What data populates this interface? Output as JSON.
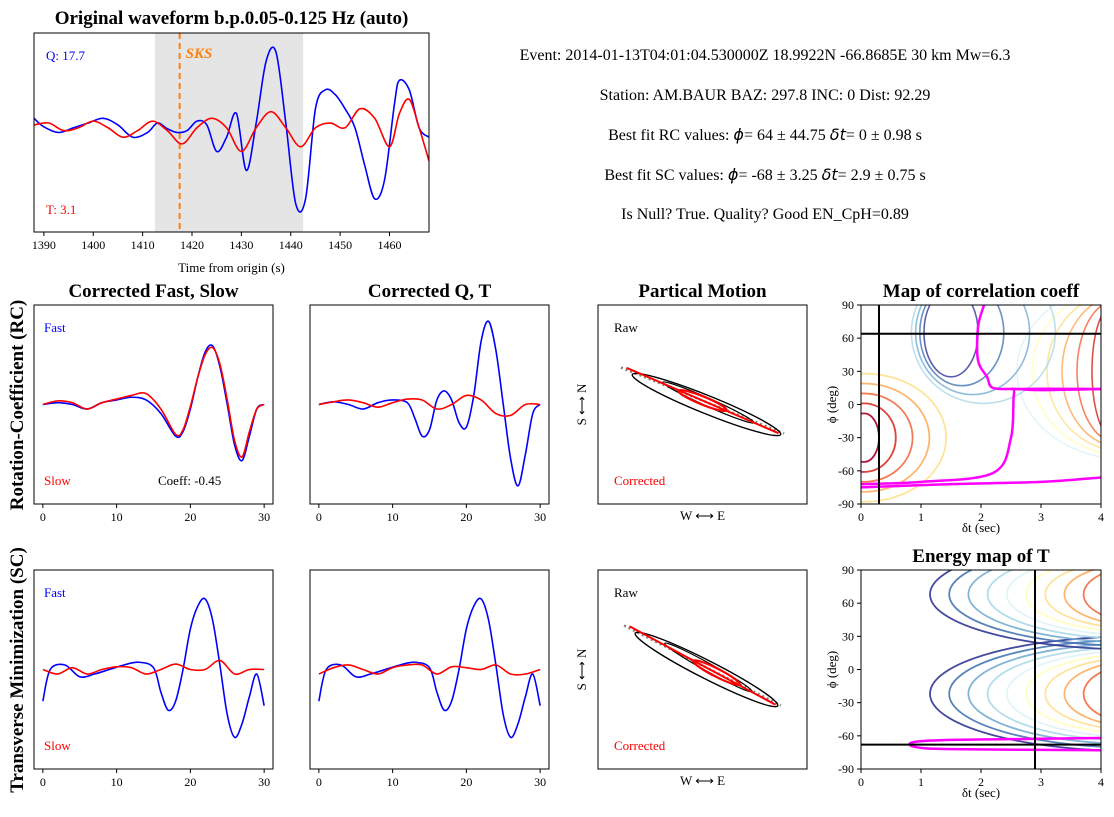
{
  "info": {
    "event_line": "Event: 2014-01-13T04:01:04.530000Z   18.9922N -66.8685E 30 km  Mw=6.3",
    "station_line": "Station: AM.BAUR  BAZ: 297.8  INC: 0 Dist: 92.29",
    "rc_prefix": "Best fit RC values: ",
    "rc_phi_symbol": "ϕ",
    "rc_phi_text": "= 64 ± 44.75    ",
    "rc_dt_symbol": "δt",
    "rc_dt_text": "= 0 ± 0.98 s",
    "sc_prefix": "Best fit SC values: ",
    "sc_phi_symbol": "ϕ",
    "sc_phi_text": "= -68 ± 3.25    ",
    "sc_dt_symbol": "δt",
    "sc_dt_text": "= 2.9 ± 0.75 s",
    "null_line": "Is Null? True. Quality? Good   EN_CpH=0.89"
  },
  "colors": {
    "fast": "#0000ff",
    "slow": "#ff0000",
    "pick": "#ff7f0e",
    "window": "#e5e5e5",
    "null_contour": "#ff00ff",
    "fit_line": "#808080"
  },
  "row_labels": {
    "rc": "Rotation-Coefficient (RC)",
    "sc": "Transverse Minimization (SC)"
  },
  "chart_data": [
    {
      "id": "waveform",
      "type": "line",
      "title": "Original waveform b.p.0.05-0.125 Hz (auto)",
      "xlabel": "Time from origin (s)",
      "ylabel": "",
      "xlim": [
        1388,
        1468
      ],
      "ylim": [
        -1.05,
        1.05
      ],
      "xticks": [
        1390,
        1400,
        1410,
        1420,
        1430,
        1440,
        1450,
        1460
      ],
      "window": [
        1412.5,
        1442.5
      ],
      "pick": {
        "x": 1417.5,
        "label": "SKS"
      },
      "labels": {
        "q": "Q: 17.7",
        "t": "T: 3.1"
      },
      "series": [
        {
          "key": "Q",
          "color": "#0000ff",
          "x": [
            1388,
            1390,
            1393,
            1396,
            1399,
            1402,
            1405,
            1408,
            1411,
            1413,
            1415,
            1417,
            1419,
            1421,
            1423,
            1425,
            1427,
            1429,
            1431,
            1433,
            1435,
            1437,
            1439,
            1441,
            1443,
            1445,
            1447,
            1449,
            1451,
            1453,
            1455,
            1457,
            1459,
            1461,
            1462,
            1464,
            1466,
            1468
          ],
          "y": [
            0.15,
            0.06,
            0.0,
            0.05,
            0.1,
            0.15,
            0.08,
            -0.05,
            0.0,
            0.1,
            0.04,
            0.0,
            0.02,
            0.12,
            0.08,
            -0.2,
            -0.05,
            0.2,
            -0.4,
            0.1,
            0.75,
            0.85,
            0.1,
            -0.75,
            -0.7,
            0.25,
            0.45,
            0.4,
            0.25,
            0.05,
            -0.35,
            -0.7,
            -0.5,
            0.3,
            0.55,
            0.45,
            0.05,
            -0.05
          ]
        },
        {
          "key": "T",
          "color": "#ff0000",
          "x": [
            1388,
            1391,
            1394,
            1397,
            1400,
            1403,
            1406,
            1409,
            1412,
            1415,
            1418,
            1421,
            1424,
            1427,
            1430,
            1433,
            1436,
            1439,
            1442,
            1445,
            1448,
            1451,
            1454,
            1457,
            1460,
            1462,
            1464,
            1466,
            1468
          ],
          "y": [
            0.08,
            0.1,
            0.02,
            0.05,
            0.12,
            0.05,
            -0.05,
            0.02,
            0.12,
            0.02,
            -0.12,
            0.05,
            0.15,
            0.05,
            -0.2,
            0.05,
            0.22,
            0.05,
            -0.15,
            0.05,
            0.1,
            0.05,
            0.25,
            0.15,
            -0.15,
            0.2,
            0.35,
            0.05,
            -0.3
          ]
        }
      ]
    },
    {
      "id": "rc_fast_slow",
      "type": "line",
      "title": "Corrected Fast, Slow",
      "xlim": [
        -1.2,
        31.2
      ],
      "ylim": [
        -1.1,
        1.1
      ],
      "xticks": [
        0,
        10,
        20,
        30
      ],
      "labels": {
        "fast": "Fast",
        "slow": "Slow",
        "coeff": "Coeff: -0.45"
      },
      "series": [
        {
          "key": "fast",
          "color": "#0000ff",
          "x": [
            0,
            2,
            4,
            6,
            8,
            10,
            12,
            14,
            16,
            18,
            19,
            20,
            21,
            22,
            23,
            24,
            25,
            26,
            27,
            28,
            29,
            30
          ],
          "y": [
            0,
            0.02,
            0.0,
            -0.05,
            0.02,
            0.05,
            0.08,
            0.05,
            -0.1,
            -0.35,
            -0.3,
            -0.05,
            0.3,
            0.58,
            0.65,
            0.42,
            0.0,
            -0.45,
            -0.62,
            -0.35,
            -0.05,
            0.0
          ]
        },
        {
          "key": "slow",
          "color": "#ff0000",
          "x": [
            0,
            2,
            4,
            6,
            8,
            10,
            12,
            14,
            16,
            18,
            19,
            20,
            21,
            22,
            23,
            24,
            25,
            26,
            27,
            28,
            29,
            30
          ],
          "y": [
            0,
            0.04,
            0.02,
            -0.05,
            0.02,
            0.06,
            0.1,
            0.12,
            -0.05,
            -0.33,
            -0.28,
            -0.02,
            0.3,
            0.55,
            0.63,
            0.45,
            0.05,
            -0.4,
            -0.58,
            -0.3,
            -0.05,
            0.0
          ]
        }
      ]
    },
    {
      "id": "rc_q_t",
      "type": "line",
      "title": "Corrected Q, T",
      "xlim": [
        -1.2,
        31.2
      ],
      "ylim": [
        -1.1,
        1.1
      ],
      "xticks": [
        0,
        10,
        20,
        30
      ],
      "series": [
        {
          "key": "Q",
          "color": "#0000ff",
          "x": [
            0,
            2,
            4,
            6,
            8,
            10,
            12,
            13,
            14,
            15,
            16,
            17,
            18,
            19,
            20,
            21,
            22,
            23,
            24,
            25,
            26,
            27,
            28,
            29,
            30
          ],
          "y": [
            0,
            0.03,
            0.0,
            -0.05,
            0.02,
            0.05,
            0.02,
            -0.15,
            -0.35,
            -0.28,
            0.05,
            0.15,
            0.05,
            -0.2,
            -0.25,
            0.1,
            0.7,
            0.92,
            0.6,
            0.0,
            -0.6,
            -0.9,
            -0.55,
            -0.1,
            0.0
          ]
        },
        {
          "key": "T",
          "color": "#ff0000",
          "x": [
            0,
            2,
            4,
            6,
            8,
            10,
            12,
            14,
            16,
            18,
            20,
            22,
            24,
            26,
            28,
            30
          ],
          "y": [
            0,
            0.03,
            0.05,
            0.02,
            -0.03,
            0.02,
            0.06,
            0.05,
            -0.05,
            0.0,
            0.1,
            0.05,
            -0.1,
            -0.12,
            0.0,
            0.0
          ]
        }
      ]
    },
    {
      "id": "rc_particle",
      "type": "scatter",
      "title": "Partical Motion",
      "xlabel": "W ⟷ E",
      "ylabel": "S ⟷ N",
      "labels": {
        "raw": "Raw",
        "corrected": "Corrected"
      }
    },
    {
      "id": "rc_map",
      "type": "heatmap",
      "title": "Map of correlation coeff",
      "xlabel": "δt (sec)",
      "ylabel": "ϕ (deg)",
      "xlim": [
        0,
        4
      ],
      "ylim": [
        -90,
        90
      ],
      "xticks": [
        0,
        1,
        2,
        3,
        4
      ],
      "yticks": [
        -90,
        -60,
        -30,
        0,
        30,
        60,
        90
      ],
      "best": {
        "dt": 0.3,
        "phi": 64
      }
    },
    {
      "id": "sc_fast_slow",
      "type": "line",
      "xlim": [
        -1.2,
        31.2
      ],
      "ylim": [
        -1.1,
        1.1
      ],
      "xticks": [
        0,
        10,
        20,
        30
      ],
      "labels": {
        "fast": "Fast",
        "slow": "Slow"
      },
      "series": [
        {
          "key": "fast",
          "color": "#0000ff",
          "x": [
            0,
            1,
            3,
            5,
            7,
            9,
            11,
            13,
            15,
            16,
            17,
            18,
            19,
            20,
            21,
            22,
            23,
            24,
            25,
            26,
            27,
            28,
            29,
            30
          ],
          "y": [
            -0.35,
            0.0,
            0.05,
            -0.08,
            -0.05,
            0.0,
            0.05,
            0.08,
            0.02,
            -0.25,
            -0.45,
            -0.35,
            0.0,
            0.45,
            0.7,
            0.78,
            0.55,
            0.05,
            -0.5,
            -0.75,
            -0.6,
            -0.3,
            -0.05,
            -0.4
          ]
        },
        {
          "key": "slow",
          "color": "#ff0000",
          "x": [
            0,
            2,
            4,
            6,
            8,
            10,
            12,
            14,
            16,
            18,
            20,
            22,
            24,
            26,
            28,
            30
          ],
          "y": [
            0.0,
            -0.05,
            0.02,
            -0.05,
            0.0,
            0.03,
            0.02,
            -0.05,
            0.0,
            0.06,
            0.0,
            0.0,
            0.1,
            -0.05,
            0.0,
            0.0
          ]
        }
      ]
    },
    {
      "id": "sc_q_t",
      "type": "line",
      "xlim": [
        -1.2,
        31.2
      ],
      "ylim": [
        -1.1,
        1.1
      ],
      "xticks": [
        0,
        10,
        20,
        30
      ],
      "series": [
        {
          "key": "Q",
          "color": "#0000ff",
          "x": [
            0,
            1,
            3,
            5,
            7,
            9,
            11,
            13,
            15,
            16,
            17,
            18,
            19,
            20,
            21,
            22,
            23,
            24,
            25,
            26,
            27,
            28,
            29,
            30
          ],
          "y": [
            -0.35,
            0.0,
            0.05,
            -0.08,
            -0.05,
            0.0,
            0.05,
            0.08,
            0.02,
            -0.25,
            -0.45,
            -0.35,
            0.0,
            0.45,
            0.7,
            0.78,
            0.55,
            0.05,
            -0.5,
            -0.75,
            -0.6,
            -0.3,
            -0.05,
            -0.4
          ]
        },
        {
          "key": "T",
          "color": "#ff0000",
          "x": [
            0,
            2,
            4,
            6,
            8,
            10,
            12,
            14,
            16,
            18,
            20,
            22,
            24,
            26,
            28,
            30
          ],
          "y": [
            -0.05,
            0.02,
            0.05,
            0.0,
            -0.05,
            0.02,
            0.05,
            0.05,
            -0.05,
            0.03,
            0.02,
            0.0,
            0.05,
            -0.05,
            -0.05,
            0.0
          ]
        }
      ]
    },
    {
      "id": "sc_particle",
      "type": "scatter",
      "xlabel": "W ⟷ E",
      "ylabel": "S ⟷ N",
      "labels": {
        "raw": "Raw",
        "corrected": "Corrected"
      }
    },
    {
      "id": "sc_map",
      "type": "heatmap",
      "title": "Energy map of T",
      "xlabel": "δt (sec)",
      "ylabel": "ϕ (deg)",
      "xlim": [
        0,
        4
      ],
      "ylim": [
        -90,
        90
      ],
      "xticks": [
        0,
        1,
        2,
        3,
        4
      ],
      "yticks": [
        -90,
        -60,
        -30,
        0,
        30,
        60,
        90
      ],
      "best": {
        "dt": 2.9,
        "phi": -68
      }
    }
  ]
}
